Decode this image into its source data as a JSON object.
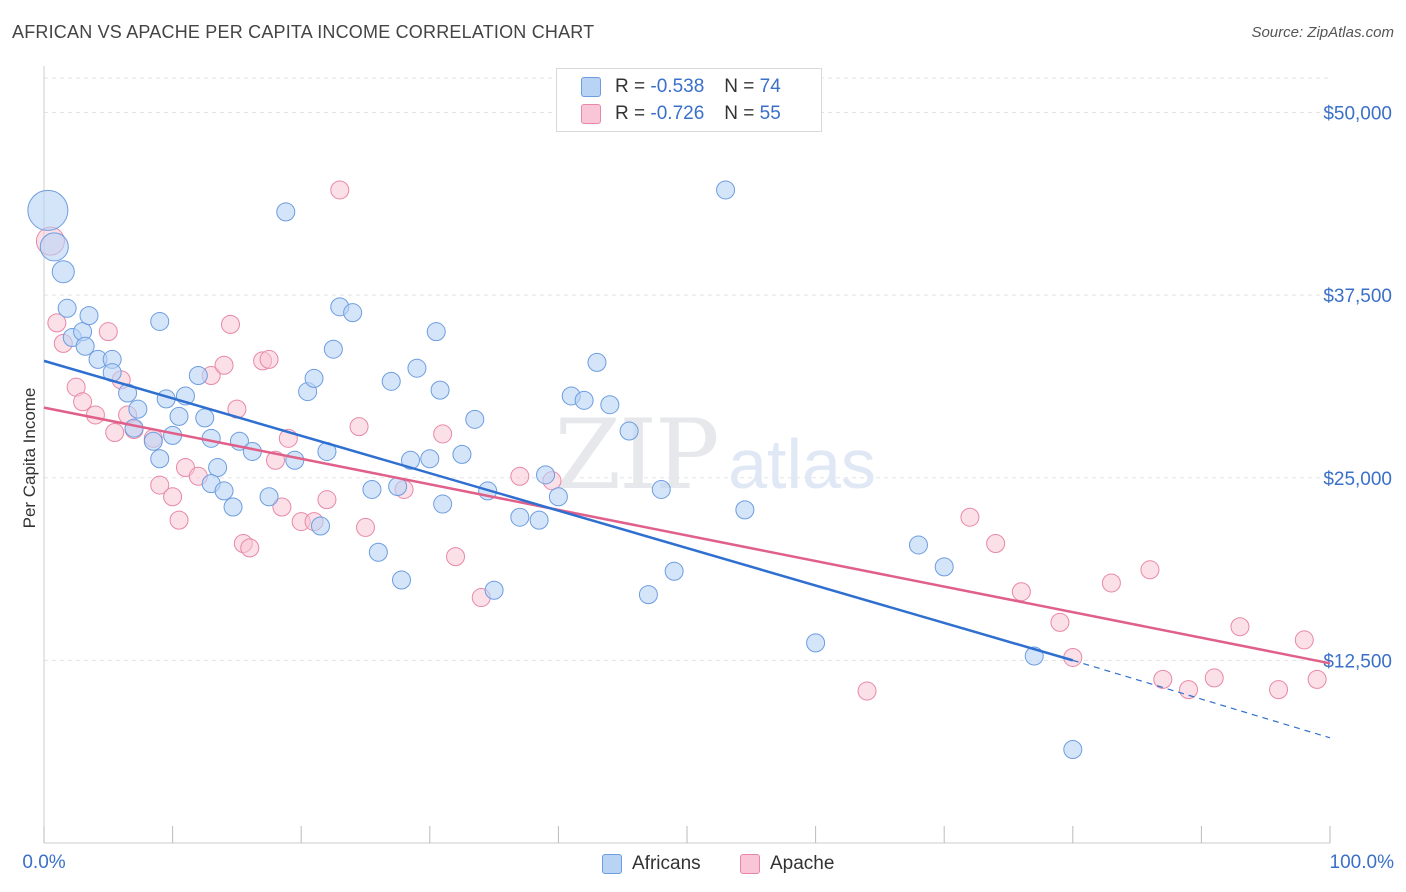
{
  "title": "AFRICAN VS APACHE PER CAPITA INCOME CORRELATION CHART",
  "source": "Source: ZipAtlas.com",
  "watermark": {
    "zip": "ZIP",
    "atlas": "atlas"
  },
  "legend": {
    "africans": {
      "r_label": "R = ",
      "r_value": "-0.538",
      "n_label": "N = ",
      "n_value": "74"
    },
    "apache": {
      "r_label": "R = ",
      "r_value": "-0.726",
      "n_label": "N = ",
      "n_value": "55"
    }
  },
  "bottom_legend": {
    "africans": "Africans",
    "apache": "Apache"
  },
  "colors": {
    "africans_fill": "#b9d3f5",
    "africans_stroke": "#6d9de0",
    "africans_line": "#2f6fd0",
    "apache_fill": "#f8c6d6",
    "apache_stroke": "#e888a8",
    "apache_line": "#e0608a",
    "tick_label": "#3a70c9",
    "grid": "#e3e3e3"
  },
  "chart_data": {
    "type": "scatter",
    "title": "AFRICAN VS APACHE PER CAPITA INCOME CORRELATION CHART",
    "xlabel": "",
    "ylabel": "Per Capita Income",
    "xlim": [
      0,
      100
    ],
    "ylim": [
      0,
      52500
    ],
    "x_tick_labels": [
      "0.0%",
      "100.0%"
    ],
    "y_ticks": [
      12500,
      25000,
      37500,
      50000
    ],
    "y_tick_labels": [
      "$12,500",
      "$25,000",
      "$37,500",
      "$50,000"
    ],
    "grid": true,
    "series": [
      {
        "name": "Africans",
        "points": [
          [
            0.3,
            43300
          ],
          [
            0.8,
            40800
          ],
          [
            1.5,
            39100
          ],
          [
            1.8,
            36600
          ],
          [
            2.2,
            34600
          ],
          [
            3.0,
            35000
          ],
          [
            3.5,
            36100
          ],
          [
            3.2,
            34000
          ],
          [
            4.2,
            33100
          ],
          [
            5.3,
            33100
          ],
          [
            5.3,
            32200
          ],
          [
            6.5,
            30800
          ],
          [
            7.0,
            28400
          ],
          [
            7.3,
            29700
          ],
          [
            8.5,
            27500
          ],
          [
            9.0,
            26300
          ],
          [
            9.5,
            30400
          ],
          [
            9.0,
            35700
          ],
          [
            10.0,
            27900
          ],
          [
            10.5,
            29200
          ],
          [
            11.0,
            30600
          ],
          [
            12.0,
            32000
          ],
          [
            12.5,
            29100
          ],
          [
            13.0,
            27700
          ],
          [
            13.5,
            25700
          ],
          [
            13.0,
            24600
          ],
          [
            14.0,
            24100
          ],
          [
            14.7,
            23000
          ],
          [
            15.2,
            27500
          ],
          [
            16.2,
            26800
          ],
          [
            17.5,
            23700
          ],
          [
            18.8,
            43200
          ],
          [
            19.5,
            26200
          ],
          [
            20.5,
            30900
          ],
          [
            21.0,
            31800
          ],
          [
            21.5,
            21700
          ],
          [
            22.0,
            26800
          ],
          [
            22.5,
            33800
          ],
          [
            23.0,
            36700
          ],
          [
            24.0,
            36300
          ],
          [
            25.5,
            24200
          ],
          [
            26.0,
            19900
          ],
          [
            27.0,
            31600
          ],
          [
            27.5,
            24400
          ],
          [
            27.8,
            18000
          ],
          [
            28.5,
            26200
          ],
          [
            29.0,
            32500
          ],
          [
            30.0,
            26300
          ],
          [
            30.5,
            35000
          ],
          [
            30.8,
            31000
          ],
          [
            31.0,
            23200
          ],
          [
            32.5,
            26600
          ],
          [
            33.5,
            29000
          ],
          [
            34.5,
            24100
          ],
          [
            35.0,
            17300
          ],
          [
            37.0,
            22300
          ],
          [
            38.5,
            22100
          ],
          [
            39.0,
            25200
          ],
          [
            40.0,
            23700
          ],
          [
            41.0,
            30600
          ],
          [
            42.0,
            30300
          ],
          [
            43.0,
            32900
          ],
          [
            44.0,
            30000
          ],
          [
            45.5,
            28200
          ],
          [
            48.0,
            24200
          ],
          [
            49.0,
            18600
          ],
          [
            47.0,
            17000
          ],
          [
            53.0,
            44700
          ],
          [
            54.5,
            22800
          ],
          [
            60.0,
            13700
          ],
          [
            68.0,
            20400
          ],
          [
            70.0,
            18900
          ],
          [
            77.0,
            12800
          ],
          [
            80.0,
            6400
          ]
        ],
        "trend": {
          "x": [
            0,
            80
          ],
          "y": [
            33000,
            12500
          ],
          "dashed_to": [
            100,
            7200
          ]
        }
      },
      {
        "name": "Apache",
        "points": [
          [
            0.5,
            41200
          ],
          [
            1.0,
            35600
          ],
          [
            1.5,
            34200
          ],
          [
            2.5,
            31200
          ],
          [
            3.0,
            30200
          ],
          [
            4.0,
            29300
          ],
          [
            5.0,
            35000
          ],
          [
            5.5,
            28100
          ],
          [
            6.0,
            31700
          ],
          [
            6.5,
            29300
          ],
          [
            7.0,
            28300
          ],
          [
            8.5,
            27700
          ],
          [
            9.0,
            24500
          ],
          [
            10.0,
            23700
          ],
          [
            10.5,
            22100
          ],
          [
            11.0,
            25700
          ],
          [
            12.0,
            25100
          ],
          [
            13.0,
            32000
          ],
          [
            14.0,
            32700
          ],
          [
            14.5,
            35500
          ],
          [
            15.0,
            29700
          ],
          [
            15.5,
            20500
          ],
          [
            16.0,
            20200
          ],
          [
            17.0,
            33000
          ],
          [
            17.5,
            33100
          ],
          [
            18.0,
            26200
          ],
          [
            18.5,
            23000
          ],
          [
            19.0,
            27700
          ],
          [
            20.0,
            22000
          ],
          [
            21.0,
            22000
          ],
          [
            22.0,
            23500
          ],
          [
            23.0,
            44700
          ],
          [
            24.5,
            28500
          ],
          [
            25.0,
            21600
          ],
          [
            28.0,
            24200
          ],
          [
            31.0,
            28000
          ],
          [
            32.0,
            19600
          ],
          [
            34.0,
            16800
          ],
          [
            37.0,
            25100
          ],
          [
            39.5,
            24800
          ],
          [
            64.0,
            10400
          ],
          [
            72.0,
            22300
          ],
          [
            74.0,
            20500
          ],
          [
            76.0,
            17200
          ],
          [
            79.0,
            15100
          ],
          [
            80.0,
            12700
          ],
          [
            83.0,
            17800
          ],
          [
            86.0,
            18700
          ],
          [
            87.0,
            11200
          ],
          [
            89.0,
            10500
          ],
          [
            91.0,
            11300
          ],
          [
            93.0,
            14800
          ],
          [
            96.0,
            10500
          ],
          [
            98.0,
            13900
          ],
          [
            99.0,
            11200
          ]
        ],
        "trend": {
          "x": [
            0,
            100
          ],
          "y": [
            29800,
            12300
          ]
        }
      }
    ]
  }
}
